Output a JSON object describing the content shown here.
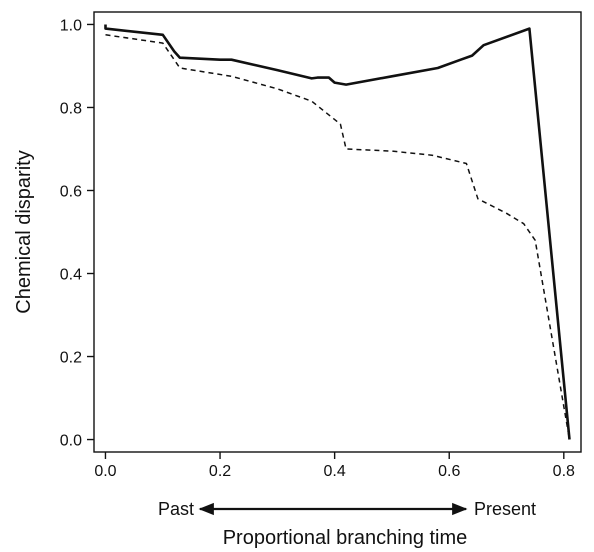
{
  "chart_data": {
    "type": "line",
    "title": "",
    "xlabel": "Proportional branching time",
    "ylabel": "Chemical disparity",
    "xlim": [
      -0.02,
      0.83
    ],
    "ylim": [
      -0.03,
      1.03
    ],
    "xticks": [
      {
        "value": 0.0,
        "label": "0.0"
      },
      {
        "value": 0.2,
        "label": "0.2"
      },
      {
        "value": 0.4,
        "label": "0.4"
      },
      {
        "value": 0.6,
        "label": "0.6"
      },
      {
        "value": 0.8,
        "label": "0.8"
      }
    ],
    "yticks": [
      {
        "value": 0.0,
        "label": "0.0"
      },
      {
        "value": 0.2,
        "label": "0.2"
      },
      {
        "value": 0.4,
        "label": "0.4"
      },
      {
        "value": 0.6,
        "label": "0.6"
      },
      {
        "value": 0.8,
        "label": "0.8"
      },
      {
        "value": 1.0,
        "label": "1.0"
      }
    ],
    "grid": false,
    "legend": "none",
    "time_direction": {
      "start_label": "Past",
      "end_label": "Present"
    },
    "series": [
      {
        "style": "solid",
        "color": "#111111",
        "x": [
          0.0,
          0.0,
          0.1,
          0.12,
          0.13,
          0.2,
          0.22,
          0.3,
          0.36,
          0.37,
          0.39,
          0.4,
          0.42,
          0.5,
          0.58,
          0.62,
          0.64,
          0.66,
          0.74,
          0.81
        ],
        "y": [
          1.0,
          0.99,
          0.975,
          0.935,
          0.92,
          0.915,
          0.915,
          0.89,
          0.87,
          0.872,
          0.872,
          0.86,
          0.855,
          0.875,
          0.895,
          0.915,
          0.925,
          0.95,
          0.99,
          0.0
        ]
      },
      {
        "style": "dashed",
        "color": "#111111",
        "x": [
          0.0,
          0.1,
          0.13,
          0.22,
          0.3,
          0.36,
          0.41,
          0.42,
          0.5,
          0.57,
          0.63,
          0.65,
          0.7,
          0.73,
          0.75,
          0.81
        ],
        "y": [
          0.975,
          0.955,
          0.895,
          0.875,
          0.845,
          0.815,
          0.76,
          0.7,
          0.695,
          0.685,
          0.665,
          0.58,
          0.545,
          0.52,
          0.48,
          0.0
        ]
      }
    ]
  }
}
